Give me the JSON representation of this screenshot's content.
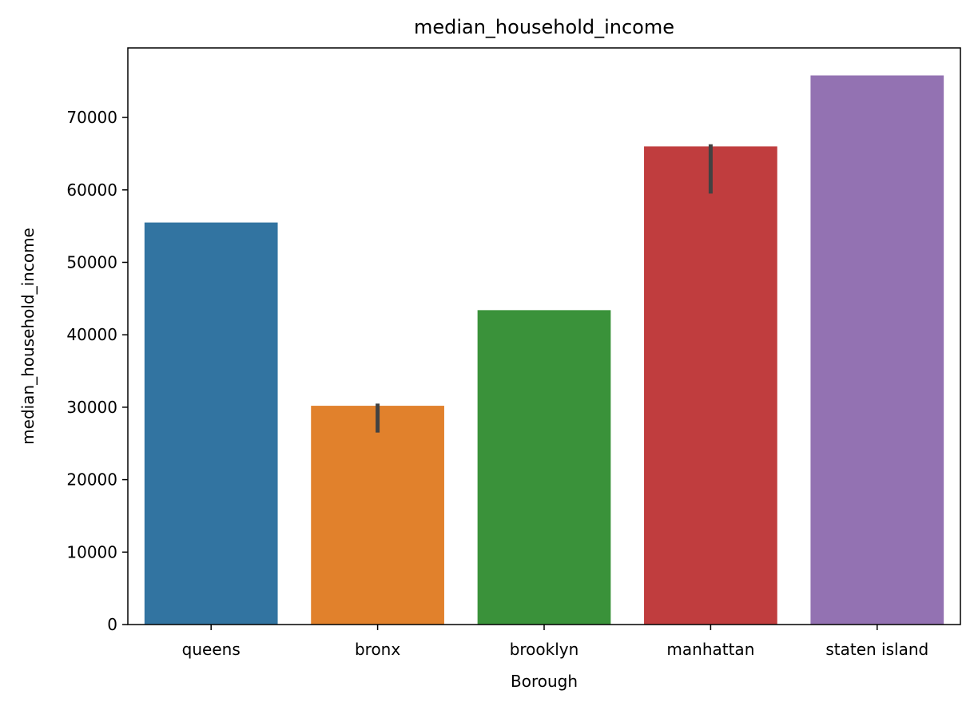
{
  "chart_data": {
    "type": "bar",
    "title": "median_household_income",
    "xlabel": "Borough",
    "ylabel": "median_household_income",
    "categories": [
      "queens",
      "bronx",
      "brooklyn",
      "manhattan",
      "staten island"
    ],
    "values": [
      55500,
      30200,
      43400,
      66000,
      75800
    ],
    "error_bars": [
      null,
      [
        26500,
        30500
      ],
      null,
      [
        59500,
        66300
      ],
      null
    ],
    "colors": [
      "#3274a1",
      "#e1812c",
      "#3a923a",
      "#c03d3e",
      "#9372b2"
    ],
    "error_color": "#424242",
    "yticks": [
      0,
      10000,
      20000,
      30000,
      40000,
      50000,
      60000,
      70000
    ],
    "ylim": [
      0,
      79600
    ],
    "grid": false
  }
}
